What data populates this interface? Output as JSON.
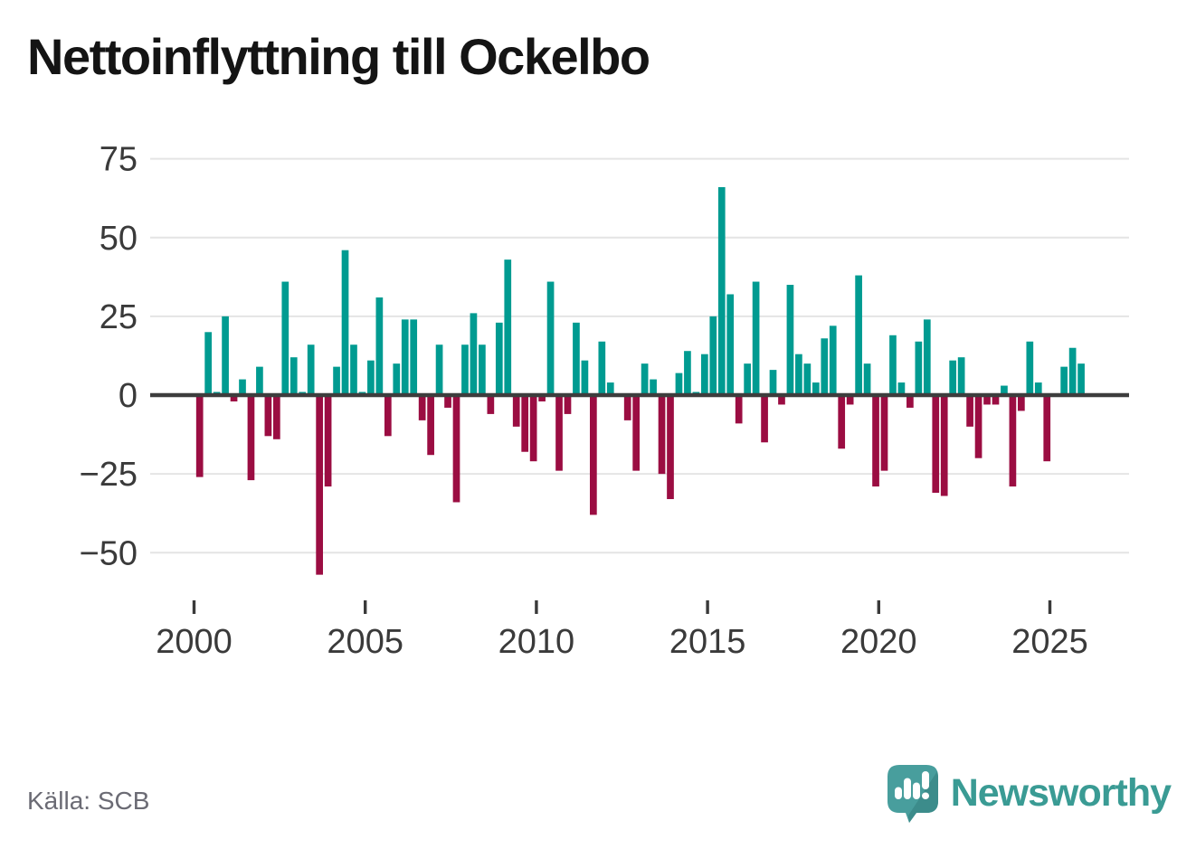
{
  "title": "Nettoinflyttning till Ockelbo",
  "source": "Källa: SCB",
  "brand": {
    "name": "Newsworthy",
    "logo_icon": "speech-bubble-bar-chart-icon"
  },
  "colors": {
    "positive": "#009b91",
    "negative": "#9b0d42",
    "grid": "#e4e4e4",
    "zero_axis": "#3d3d3d",
    "axis_text": "#3a3a3a",
    "title_text": "#141414",
    "source_text": "#6b6b74",
    "brand_text": "#3a9b94",
    "logo_bubble": "#489e9d",
    "logo_bubble_shade": "#3c8c8b"
  },
  "chart_data": {
    "type": "bar",
    "title": "Nettoinflyttning till Ockelbo",
    "x_start": "2000 Q1",
    "frequency": "quarterly",
    "categories": [
      "2000 Q1",
      "2000 Q2",
      "2000 Q3",
      "2000 Q4",
      "2001 Q1",
      "2001 Q2",
      "2001 Q3",
      "2001 Q4",
      "2002 Q1",
      "2002 Q2",
      "2002 Q3",
      "2002 Q4",
      "2003 Q1",
      "2003 Q2",
      "2003 Q3",
      "2003 Q4",
      "2004 Q1",
      "2004 Q2",
      "2004 Q3",
      "2004 Q4",
      "2005 Q1",
      "2005 Q2",
      "2005 Q3",
      "2005 Q4",
      "2006 Q1",
      "2006 Q2",
      "2006 Q3",
      "2006 Q4",
      "2007 Q1",
      "2007 Q2",
      "2007 Q3",
      "2007 Q4",
      "2008 Q1",
      "2008 Q2",
      "2008 Q3",
      "2008 Q4",
      "2009 Q1",
      "2009 Q2",
      "2009 Q3",
      "2009 Q4",
      "2010 Q1",
      "2010 Q2",
      "2010 Q3",
      "2010 Q4",
      "2011 Q1",
      "2011 Q2",
      "2011 Q3",
      "2011 Q4",
      "2012 Q1",
      "2012 Q2",
      "2012 Q3",
      "2012 Q4",
      "2013 Q1",
      "2013 Q2",
      "2013 Q3",
      "2013 Q4",
      "2014 Q1",
      "2014 Q2",
      "2014 Q3",
      "2014 Q4",
      "2015 Q1",
      "2015 Q2",
      "2015 Q3",
      "2015 Q4",
      "2016 Q1",
      "2016 Q2",
      "2016 Q3",
      "2016 Q4",
      "2017 Q1",
      "2017 Q2",
      "2017 Q3",
      "2017 Q4",
      "2018 Q1",
      "2018 Q2",
      "2018 Q3",
      "2018 Q4",
      "2019 Q1",
      "2019 Q2",
      "2019 Q3",
      "2019 Q4",
      "2020 Q1",
      "2020 Q2",
      "2020 Q3",
      "2020 Q4",
      "2021 Q1",
      "2021 Q2",
      "2021 Q3",
      "2021 Q4",
      "2022 Q1",
      "2022 Q2",
      "2022 Q3",
      "2022 Q4",
      "2023 Q1",
      "2023 Q2",
      "2023 Q3",
      "2023 Q4",
      "2024 Q1",
      "2024 Q2",
      "2024 Q3",
      "2024 Q4",
      "2025 Q1",
      "2025 Q2",
      "2025 Q3",
      "2025 Q4"
    ],
    "values": [
      -26,
      20,
      1,
      25,
      -2,
      5,
      -27,
      9,
      -13,
      -14,
      36,
      12,
      1,
      16,
      -57,
      -29,
      9,
      46,
      16,
      1,
      11,
      31,
      -13,
      10,
      24,
      24,
      -8,
      -19,
      16,
      -4,
      -34,
      16,
      26,
      16,
      -6,
      23,
      43,
      -10,
      -18,
      -21,
      -2,
      36,
      -24,
      -6,
      23,
      11,
      -38,
      17,
      4,
      0,
      -8,
      -24,
      10,
      5,
      -25,
      -33,
      7,
      14,
      1,
      13,
      25,
      66,
      32,
      -9,
      10,
      36,
      -15,
      8,
      -3,
      35,
      13,
      10,
      4,
      18,
      22,
      -17,
      -3,
      38,
      10,
      -29,
      -24,
      19,
      4,
      -4,
      17,
      24,
      -31,
      -32,
      11,
      12,
      -10,
      -20,
      -3,
      -3,
      3,
      -29,
      -5,
      17,
      4,
      -21,
      0,
      9,
      15,
      10
    ],
    "positive_color": "#009b91",
    "negative_color": "#9b0d42",
    "y_ticks": [
      75,
      50,
      25,
      0,
      -25,
      -50
    ],
    "y_tick_labels": [
      "75",
      "50",
      "25",
      "0",
      "−25",
      "−50"
    ],
    "x_tick_labels": [
      "2000",
      "2005",
      "2010",
      "2015",
      "2020",
      "2025"
    ],
    "ylim": [
      -62,
      80
    ],
    "grid": true,
    "legend": false
  }
}
